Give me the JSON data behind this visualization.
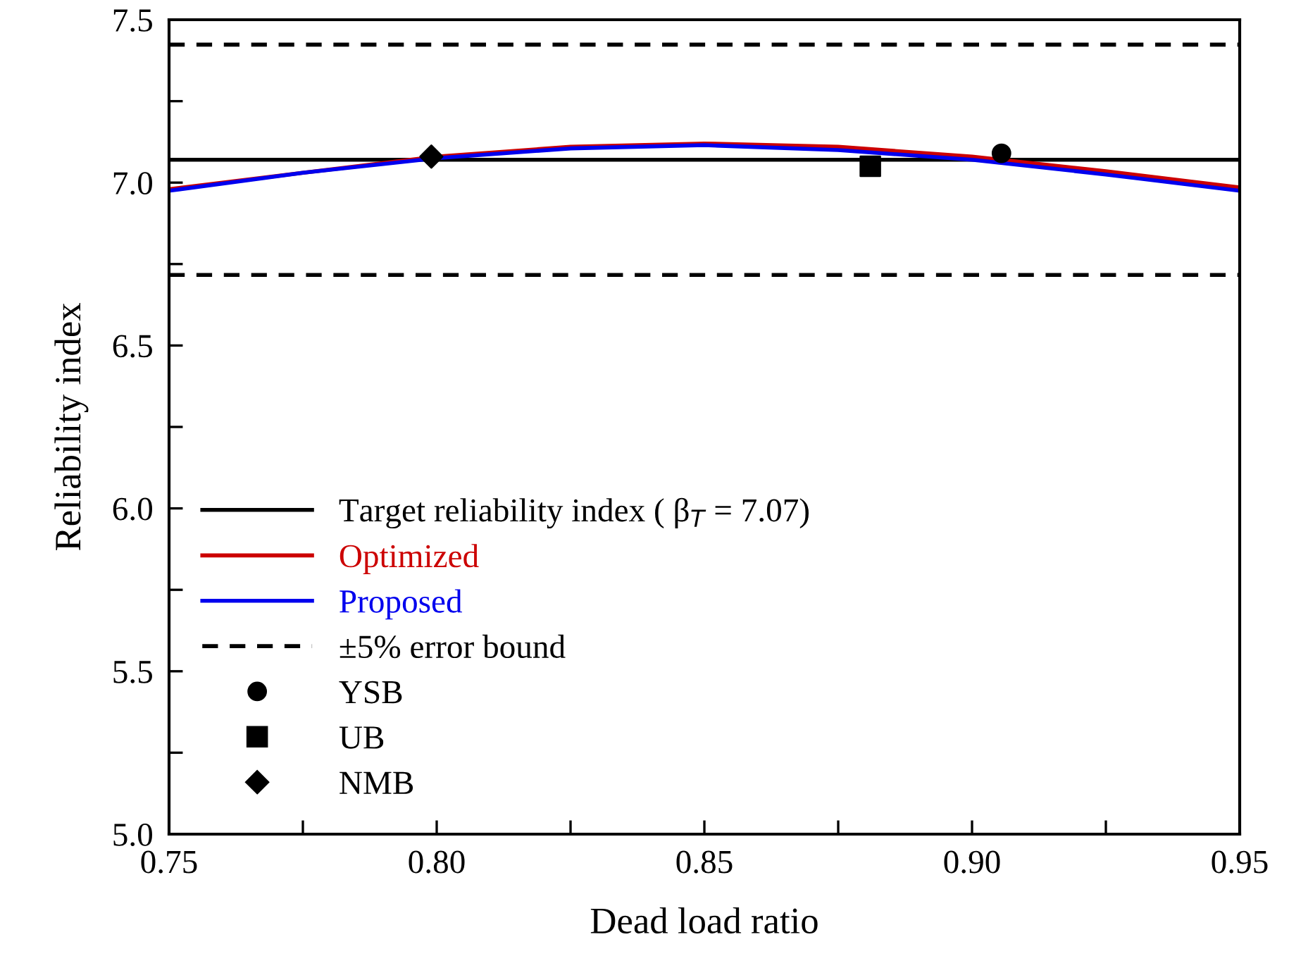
{
  "chart_data": {
    "type": "line",
    "xlabel": "Dead load ratio",
    "ylabel": "Reliability index",
    "xlim": [
      0.75,
      0.95
    ],
    "ylim": [
      5.0,
      7.5
    ],
    "xticks": [
      0.75,
      {
        "value": 0.775,
        "label": null
      },
      "0.80",
      {
        "value": 0.825,
        "label": null
      },
      0.85,
      {
        "value": 0.875,
        "label": null
      },
      "0.90",
      {
        "value": 0.925,
        "label": null
      },
      0.95
    ],
    "yticks": [
      "5.0",
      {
        "value": 5.25,
        "label": null
      },
      5.5,
      {
        "value": 5.75,
        "label": null
      },
      "6.0",
      {
        "value": 6.25,
        "label": null
      },
      6.5,
      {
        "value": 6.75,
        "label": null
      },
      "7.0",
      {
        "value": 7.25,
        "label": null
      },
      7.5
    ],
    "x": [
      0.75,
      0.775,
      0.8,
      0.825,
      0.85,
      0.875,
      0.9,
      0.925,
      0.95
    ],
    "series": [
      {
        "name": "Optimized",
        "color": "#cc0000",
        "values": [
          6.98,
          7.03,
          7.08,
          7.11,
          7.12,
          7.11,
          7.08,
          7.035,
          6.985
        ]
      },
      {
        "name": "Proposed",
        "color": "#0000ee",
        "values": [
          6.975,
          7.03,
          7.075,
          7.105,
          7.115,
          7.1,
          7.07,
          7.025,
          6.975
        ]
      },
      {
        "name": "YSB",
        "type": "scatter",
        "marker": "circle",
        "color": "#000000",
        "x": [
          0.9055
        ],
        "values": [
          7.09
        ]
      },
      {
        "name": "UB",
        "type": "scatter",
        "marker": "square",
        "color": "#000000",
        "x": [
          0.881
        ],
        "values": [
          7.05
        ]
      },
      {
        "name": "NMB",
        "type": "scatter",
        "marker": "diamond",
        "color": "#000000",
        "x": [
          0.799
        ],
        "values": [
          7.08
        ]
      }
    ],
    "ref_lines": [
      {
        "axis": "y",
        "value": 7.07,
        "label": "Target reliability index ( β$_{T}$ = 7.07)",
        "color": "#000000",
        "line_style": "solid"
      },
      {
        "axis": "y",
        "value": 7.4235,
        "label": "±5% error bound",
        "color": "#000000",
        "line_style": "dashed"
      },
      {
        "axis": "y",
        "value": 6.7165,
        "label": null,
        "color": "#000000",
        "line_style": "dashed"
      }
    ],
    "legend": "lower left",
    "grid": false
  }
}
